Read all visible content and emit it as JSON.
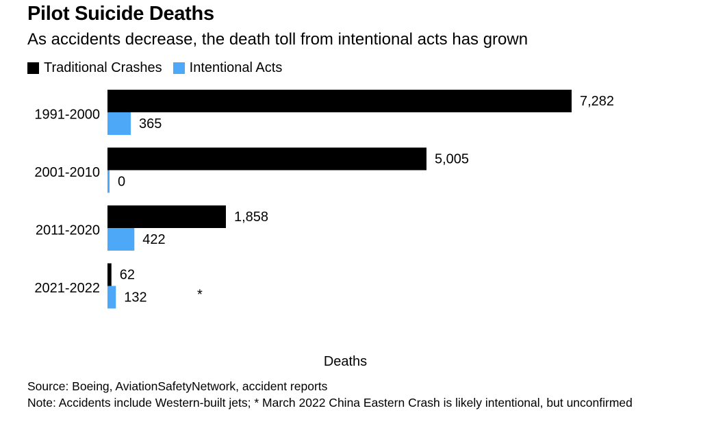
{
  "title": "Pilot Suicide Deaths",
  "subtitle": "As accidents decrease, the death toll from intentional acts has grown",
  "legend": [
    {
      "label": "Traditional Crashes",
      "color": "#000000"
    },
    {
      "label": "Intentional Acts",
      "color": "#4da9f7"
    }
  ],
  "chart_data": {
    "type": "bar",
    "orientation": "horizontal",
    "categories": [
      "1991-2000",
      "2001-2010",
      "2011-2020",
      "2021-2022"
    ],
    "series": [
      {
        "name": "Traditional Crashes",
        "color": "#000000",
        "values": [
          7282,
          5005,
          1858,
          62
        ],
        "labels": [
          "7,282",
          "5,005",
          "1,858",
          "62"
        ]
      },
      {
        "name": "Intentional Acts",
        "color": "#4da9f7",
        "values": [
          365,
          0,
          422,
          132
        ],
        "labels": [
          "365",
          "0",
          "422",
          "132"
        ]
      }
    ],
    "xlabel": "Deaths",
    "xlim": [
      0,
      7282
    ],
    "annotations": [
      {
        "category": "2021-2022",
        "series": "Intentional Acts",
        "text": "*"
      }
    ],
    "grid": false,
    "legend_position": "top-left"
  },
  "source": "Source: Boeing, AviationSafetyNetwork, accident reports",
  "note": "Note: Accidents include Western-built jets; * March 2022 China Eastern Crash is likely intentional, but unconfirmed"
}
